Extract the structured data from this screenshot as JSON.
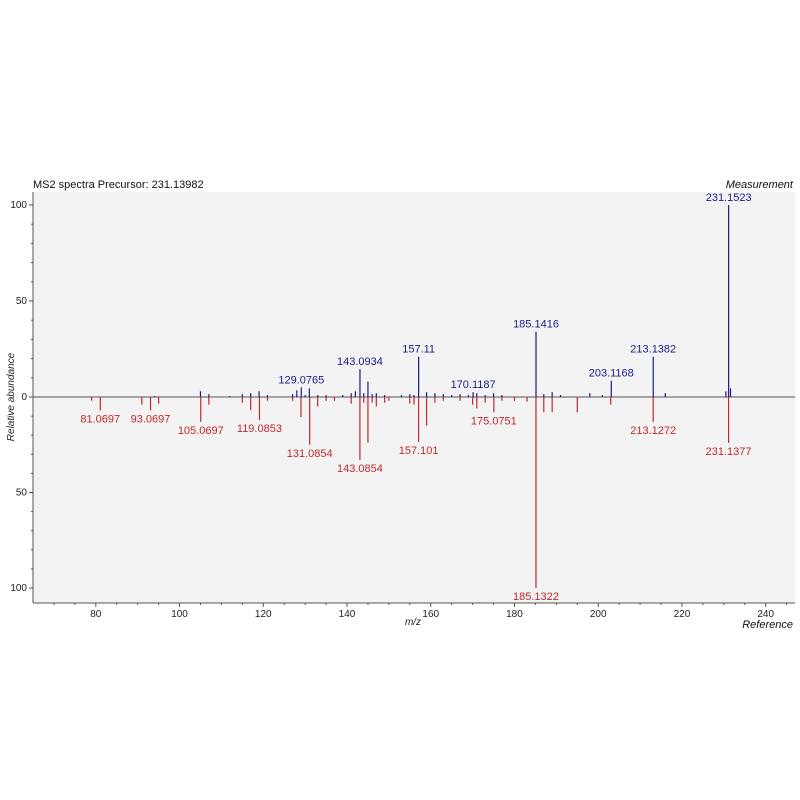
{
  "chart_data": {
    "type": "mirror-bar",
    "title": "MS2 spectra Precursor: 231.13982",
    "top_label": "Measurement",
    "bottom_label": "Reference",
    "xlabel": "m/z",
    "ylabel": "Relative abundance",
    "xlim": [
      65,
      247
    ],
    "ylim": [
      -105,
      105
    ],
    "xticks": [
      80,
      100,
      120,
      140,
      160,
      180,
      200,
      220,
      240
    ],
    "yticks_top": [
      0,
      50,
      100
    ],
    "yticks_bottom": [
      50,
      100
    ],
    "colors": {
      "measurement": "#1a1a8c",
      "reference": "#c0282a",
      "axis": "#555555",
      "plot_bg": "#f3f3f3"
    },
    "series": [
      {
        "name": "Measurement",
        "peaks": [
          [
            94.0,
            0.5
          ],
          [
            105.0,
            3.0
          ],
          [
            107.0,
            1.5
          ],
          [
            112.0,
            0.5
          ],
          [
            115.0,
            1.5
          ],
          [
            117.0,
            2.0
          ],
          [
            119.0,
            3.0
          ],
          [
            121.0,
            1.0
          ],
          [
            127.0,
            1.5
          ],
          [
            128.0,
            3.5
          ],
          [
            129.0765,
            5.0
          ],
          [
            130.0,
            1.0
          ],
          [
            131.0,
            4.5
          ],
          [
            133.0,
            1.0
          ],
          [
            135.0,
            1.0
          ],
          [
            139.0,
            1.0
          ],
          [
            141.0,
            2.0
          ],
          [
            142.0,
            3.0
          ],
          [
            143.0934,
            14.5
          ],
          [
            144.0,
            2.0
          ],
          [
            145.0,
            8.0
          ],
          [
            146.0,
            1.5
          ],
          [
            147.0,
            2.0
          ],
          [
            149.0,
            1.0
          ],
          [
            153.0,
            1.0
          ],
          [
            155.0,
            1.5
          ],
          [
            156.0,
            1.0
          ],
          [
            157.11,
            21.0
          ],
          [
            159.0,
            2.5
          ],
          [
            161.0,
            2.0
          ],
          [
            163.0,
            1.5
          ],
          [
            165.0,
            1.0
          ],
          [
            167.0,
            1.5
          ],
          [
            169.0,
            1.0
          ],
          [
            170.1187,
            2.5
          ],
          [
            171.0,
            2.0
          ],
          [
            173.0,
            1.0
          ],
          [
            175.0,
            2.0
          ],
          [
            177.0,
            1.0
          ],
          [
            185.1416,
            34.0
          ],
          [
            187.0,
            1.5
          ],
          [
            189.0,
            2.5
          ],
          [
            191.0,
            1.0
          ],
          [
            198.0,
            2.0
          ],
          [
            201.0,
            1.0
          ],
          [
            203.1168,
            8.5
          ],
          [
            213.1382,
            21.0
          ],
          [
            216.0,
            2.0
          ],
          [
            230.5,
            3.0
          ],
          [
            231.1523,
            100.0
          ],
          [
            231.6,
            4.5
          ]
        ],
        "labels": [
          {
            "x": 129.0765,
            "text": "129.0765"
          },
          {
            "x": 143.0934,
            "text": "143.0934"
          },
          {
            "x": 157.11,
            "text": "157.11"
          },
          {
            "x": 170.1187,
            "text": "170.1187"
          },
          {
            "x": 185.1416,
            "text": "185.1416"
          },
          {
            "x": 203.1168,
            "text": "203.1168"
          },
          {
            "x": 213.1382,
            "text": "213.1382"
          },
          {
            "x": 231.1523,
            "text": "231.1523"
          }
        ]
      },
      {
        "name": "Reference",
        "peaks": [
          [
            79.0,
            2.0
          ],
          [
            81.0697,
            7.0
          ],
          [
            91.0,
            4.0
          ],
          [
            93.0697,
            7.0
          ],
          [
            95.0,
            3.5
          ],
          [
            105.0697,
            13.0
          ],
          [
            107.0,
            4.0
          ],
          [
            115.0,
            3.0
          ],
          [
            117.0,
            7.0
          ],
          [
            119.0853,
            12.0
          ],
          [
            121.0,
            2.0
          ],
          [
            127.0,
            2.0
          ],
          [
            129.0,
            10.5
          ],
          [
            131.0854,
            25.0
          ],
          [
            133.0,
            5.0
          ],
          [
            135.0,
            2.0
          ],
          [
            137.0,
            2.0
          ],
          [
            141.0,
            3.5
          ],
          [
            143.0854,
            33.0
          ],
          [
            144.0,
            3.0
          ],
          [
            145.0,
            24.0
          ],
          [
            146.0,
            3.0
          ],
          [
            147.0,
            5.0
          ],
          [
            149.0,
            3.0
          ],
          [
            150.0,
            2.0
          ],
          [
            155.0,
            3.5
          ],
          [
            156.0,
            4.0
          ],
          [
            157.101,
            23.5
          ],
          [
            159.0,
            15.0
          ],
          [
            161.0,
            3.0
          ],
          [
            163.0,
            2.0
          ],
          [
            167.0,
            2.0
          ],
          [
            170.0,
            4.0
          ],
          [
            171.0,
            6.0
          ],
          [
            173.0,
            3.0
          ],
          [
            175.0751,
            8.0
          ],
          [
            177.0,
            2.0
          ],
          [
            180.0,
            2.0
          ],
          [
            183.0,
            2.5
          ],
          [
            185.1322,
            100.0
          ],
          [
            187.0,
            8.0
          ],
          [
            189.0,
            8.0
          ],
          [
            195.0,
            8.0
          ],
          [
            203.0,
            4.0
          ],
          [
            213.1272,
            13.0
          ],
          [
            231.1377,
            24.0
          ]
        ],
        "labels": [
          {
            "x": 81.0697,
            "text": "81.0697"
          },
          {
            "x": 93.0697,
            "text": "93.0697"
          },
          {
            "x": 105.0697,
            "text": "105.0697"
          },
          {
            "x": 119.0853,
            "text": "119.0853"
          },
          {
            "x": 131.0854,
            "text": "131.0854"
          },
          {
            "x": 143.0854,
            "text": "143.0854"
          },
          {
            "x": 157.101,
            "text": "157.101"
          },
          {
            "x": 175.0751,
            "text": "175.0751"
          },
          {
            "x": 185.1322,
            "text": "185.1322"
          },
          {
            "x": 213.1272,
            "text": "213.1272"
          },
          {
            "x": 231.1377,
            "text": "231.1377"
          }
        ]
      }
    ]
  }
}
